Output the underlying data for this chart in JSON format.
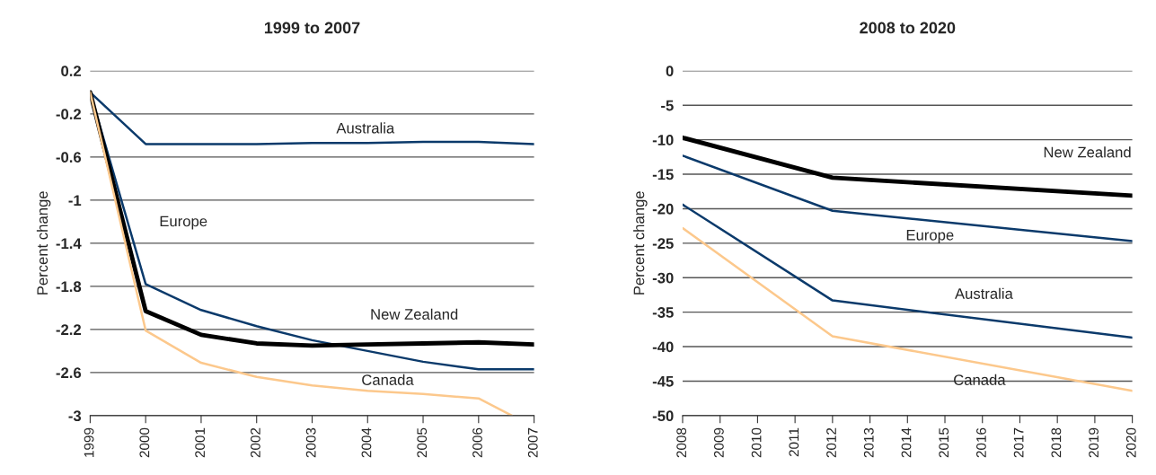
{
  "chart_data": [
    {
      "type": "line",
      "title": "1999 to 2007",
      "ylabel": "Percent change",
      "x": [
        1999,
        2000,
        2001,
        2002,
        2003,
        2004,
        2005,
        2006,
        2007
      ],
      "xlim": [
        1999,
        2007
      ],
      "xticks": [
        1999,
        2000,
        2001,
        2002,
        2003,
        2004,
        2005,
        2006,
        2007
      ],
      "ylim": [
        -3,
        0.2
      ],
      "yticks": [
        0.2,
        -0.2,
        -0.6,
        -1,
        -1.4,
        -1.8,
        -2.2,
        -2.6,
        -3
      ],
      "grid": "y",
      "legend": false,
      "series": [
        {
          "name": "Australia",
          "color": "#0b3a6b",
          "values": [
            0.0,
            -0.48,
            -0.48,
            -0.48,
            -0.47,
            -0.47,
            -0.46,
            -0.46,
            -0.48
          ]
        },
        {
          "name": "Europe",
          "color": "#0b3a6b",
          "values": [
            0.0,
            -1.78,
            -2.02,
            -2.17,
            -2.3,
            -2.4,
            -2.5,
            -2.57,
            -2.57
          ]
        },
        {
          "name": "New Zealand",
          "color": "#000000",
          "values": [
            0.0,
            -2.03,
            -2.25,
            -2.33,
            -2.35,
            -2.34,
            -2.33,
            -2.32,
            -2.34
          ]
        },
        {
          "name": "Canada",
          "color": "#fcc88c",
          "x": [
            1999,
            2000,
            2001,
            2002,
            2003,
            2004,
            2005,
            2006,
            2006.6
          ],
          "values": [
            0.0,
            -2.21,
            -2.51,
            -2.64,
            -2.72,
            -2.77,
            -2.8,
            -2.84,
            -3
          ]
        }
      ]
    },
    {
      "type": "line",
      "title": "2008 to 2020",
      "ylabel": "Percent change",
      "xlim": [
        2008,
        2020
      ],
      "xticks": [
        2008,
        2009,
        2010,
        2011,
        2012,
        2013,
        2014,
        2015,
        2016,
        2017,
        2018,
        2019,
        2020
      ],
      "ylim": [
        -50,
        0
      ],
      "yticks": [
        0,
        -5,
        -10,
        -15,
        -20,
        -25,
        -30,
        -35,
        -40,
        -45,
        -50
      ],
      "grid": "y",
      "legend": false,
      "series": [
        {
          "name": "New Zealand",
          "color": "#000000",
          "x": [
            2008,
            2012,
            2020
          ],
          "values": [
            -9.7,
            -15.5,
            -18.1
          ]
        },
        {
          "name": "Europe",
          "color": "#0b3a6b",
          "x": [
            2008,
            2012,
            2020
          ],
          "values": [
            -12.3,
            -20.3,
            -24.7
          ]
        },
        {
          "name": "Australia",
          "color": "#0b3a6b",
          "x": [
            2008,
            2012,
            2020
          ],
          "values": [
            -19.4,
            -33.3,
            -38.7
          ]
        },
        {
          "name": "Canada",
          "color": "#fcc88c",
          "x": [
            2008,
            2012,
            2020
          ],
          "values": [
            -22.8,
            -38.5,
            -46.4
          ]
        }
      ]
    }
  ]
}
